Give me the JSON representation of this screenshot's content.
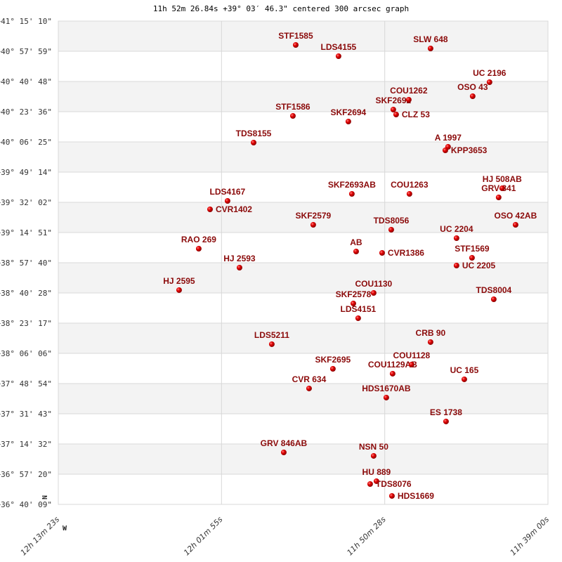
{
  "chart_data": {
    "type": "scatter",
    "title": "11h 52m 26.84s +39° 03′ 46.3\" centered 300 arcsec graph",
    "xlabel": "",
    "ylabel": "",
    "xlim_ra_hours": [
      12.22306,
      11.65
    ],
    "ylim_dec_deg": [
      36.6692,
      41.2528
    ],
    "grid": true,
    "compass": {
      "north": "N",
      "west": "W"
    },
    "colors": {
      "point": "#cc0000",
      "label": "#8b0a0a",
      "band": "#f3f3f3",
      "grid": "#d8d8d8"
    },
    "yticks": [
      "+41° 15' 10\"",
      "+40° 57' 59\"",
      "+40° 40' 48\"",
      "+40° 23' 36\"",
      "+40° 06' 25\"",
      "+39° 49' 14\"",
      "+39° 32' 02\"",
      "+39° 14' 51\"",
      "+38° 57' 40\"",
      "+38° 40' 28\"",
      "+38° 23' 17\"",
      "+38° 06' 06\"",
      "+37° 48' 54\"",
      "+37° 31' 43\"",
      "+37° 14' 32\"",
      "+36° 57' 20\"",
      "+36° 40' 09\""
    ],
    "xticks": [
      "12h 13m 23s",
      "12h 01m 55s",
      "11h 50m 28s",
      "11h 39m 00s"
    ],
    "points": [
      {
        "name": "STF1585",
        "ra": 11.9452,
        "dec": 41.0263
      },
      {
        "name": "LDS4155",
        "ra": 11.8951,
        "dec": 40.9197
      },
      {
        "name": "SLW 648",
        "ra": 11.7874,
        "dec": 40.993
      },
      {
        "name": "UC 2196",
        "ra": 11.7184,
        "dec": 40.6732
      },
      {
        "name": "OSO  43",
        "ra": 11.7381,
        "dec": 40.54
      },
      {
        "name": "COU1262",
        "ra": 11.8129,
        "dec": 40.5067
      },
      {
        "name": "SKF2692",
        "ra": 11.831,
        "dec": 40.4134
      },
      {
        "name": "CLZ  53",
        "ra": 11.8277,
        "dec": 40.3668
      },
      {
        "name": "STF1586",
        "ra": 11.9485,
        "dec": 40.3534
      },
      {
        "name": "SKF2694",
        "ra": 11.8836,
        "dec": 40.3001
      },
      {
        "name": "TDS8155",
        "ra": 11.9945,
        "dec": 40.1003
      },
      {
        "name": "A  1997",
        "ra": 11.7669,
        "dec": 40.0603
      },
      {
        "name": "KPP3653",
        "ra": 11.7701,
        "dec": 40.027
      },
      {
        "name": "SKF2693AB",
        "ra": 11.8795,
        "dec": 39.6139
      },
      {
        "name": "COU1263",
        "ra": 11.8121,
        "dec": 39.6139
      },
      {
        "name": "HJ  508AB",
        "ra": 11.7036,
        "dec": 39.6672
      },
      {
        "name": "GRV 841",
        "ra": 11.7077,
        "dec": 39.5806
      },
      {
        "name": "LDS4167",
        "ra": 12.025,
        "dec": 39.5473
      },
      {
        "name": "CVR1402",
        "ra": 12.0455,
        "dec": 39.4674
      },
      {
        "name": "SKF2579",
        "ra": 11.9247,
        "dec": 39.3208
      },
      {
        "name": "OSO  42AB",
        "ra": 11.6879,
        "dec": 39.3208
      },
      {
        "name": "TDS8056",
        "ra": 11.8334,
        "dec": 39.2742
      },
      {
        "name": "UC 2204",
        "ra": 11.757,
        "dec": 39.1942
      },
      {
        "name": "RAO 269",
        "ra": 12.0587,
        "dec": 39.0943
      },
      {
        "name": "AB",
        "ra": 11.8745,
        "dec": 39.0677
      },
      {
        "name": "CVR1386",
        "ra": 11.8441,
        "dec": 39.0543
      },
      {
        "name": "STF1569",
        "ra": 11.7389,
        "dec": 39.0077
      },
      {
        "name": "UC 2205",
        "ra": 11.757,
        "dec": 38.9344
      },
      {
        "name": "HJ 2593",
        "ra": 12.011,
        "dec": 38.9144
      },
      {
        "name": "HJ 2595",
        "ra": 12.0817,
        "dec": 38.7013
      },
      {
        "name": "COU1130",
        "ra": 11.854,
        "dec": 38.6746
      },
      {
        "name": "SKF2578",
        "ra": 11.8778,
        "dec": 38.5747
      },
      {
        "name": "TDS8004",
        "ra": 11.7134,
        "dec": 38.6146
      },
      {
        "name": "LDS4151",
        "ra": 11.8721,
        "dec": 38.4348
      },
      {
        "name": "CRB  90",
        "ra": 11.7874,
        "dec": 38.2083
      },
      {
        "name": "LDS5211",
        "ra": 11.9732,
        "dec": 38.1883
      },
      {
        "name": "COU1128",
        "ra": 11.8096,
        "dec": 37.9951
      },
      {
        "name": "SKF2695",
        "ra": 11.9017,
        "dec": 37.9551
      },
      {
        "name": "COU1129AB",
        "ra": 11.8318,
        "dec": 37.9085
      },
      {
        "name": "UC  165",
        "ra": 11.7479,
        "dec": 37.8552
      },
      {
        "name": "CVR 634",
        "ra": 11.9296,
        "dec": 37.7686
      },
      {
        "name": "HDS1670AB",
        "ra": 11.8392,
        "dec": 37.682
      },
      {
        "name": "ES 1738",
        "ra": 11.7693,
        "dec": 37.4555
      },
      {
        "name": "GRV 846AB",
        "ra": 11.9592,
        "dec": 37.1623
      },
      {
        "name": "NSN  50",
        "ra": 11.854,
        "dec": 37.129
      },
      {
        "name": "HU  889",
        "ra": 11.8507,
        "dec": 36.8892
      },
      {
        "name": "TDS8076",
        "ra": 11.8581,
        "dec": 36.8625
      },
      {
        "name": "HDS1669",
        "ra": 11.8326,
        "dec": 36.7493
      }
    ]
  }
}
